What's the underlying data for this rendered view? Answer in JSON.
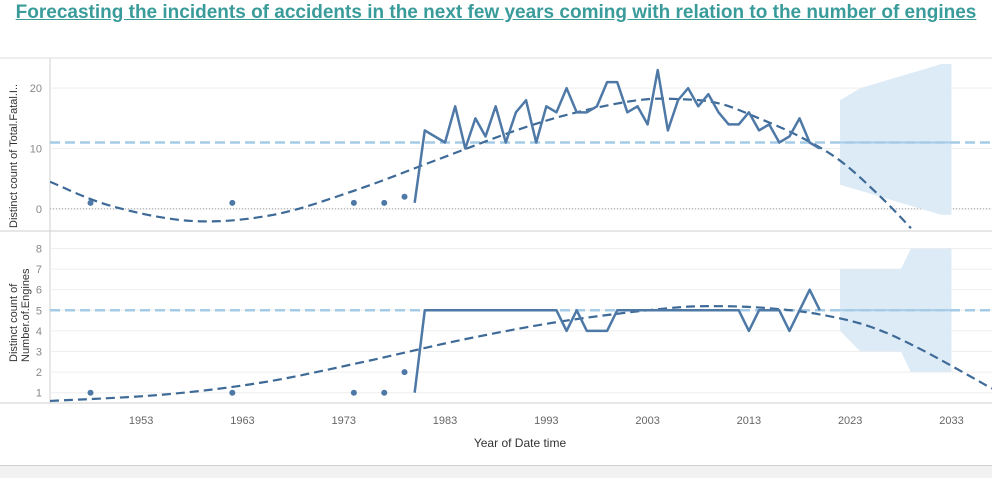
{
  "title": "Forecasting the incidents of accidents in the next few years coming with relation to the number of engines",
  "x_axis_label": "Year of Date time",
  "colors": {
    "series": "#4e79a7",
    "reference_line": "#a6cbe6",
    "forecast_band": "#ddebf7",
    "title": "#3a9b9b"
  },
  "chart_data": [
    {
      "type": "line",
      "panel": "top",
      "ylabel": "Distinct count of Total.Fatal.I..",
      "yticks": [
        0,
        10,
        20
      ],
      "ylim": [
        -3.5,
        25
      ],
      "xlim": [
        1944,
        2037
      ],
      "xticks": [
        1953,
        1963,
        1973,
        1983,
        1993,
        2003,
        2013,
        2023,
        2033
      ],
      "reference_line": 11,
      "points": [
        [
          1948,
          1
        ],
        [
          1962,
          1
        ],
        [
          1974,
          1
        ],
        [
          1977,
          1
        ],
        [
          1979,
          2
        ]
      ],
      "series": [
        {
          "name": "Distinct count of Total.Fatal.I..",
          "x": [
            1980,
            1981,
            1983,
            1984,
            1985,
            1986,
            1987,
            1988,
            1989,
            1990,
            1991,
            1992,
            1993,
            1994,
            1995,
            1996,
            1997,
            1998,
            1999,
            2000,
            2001,
            2002,
            2003,
            2004,
            2005,
            2006,
            2007,
            2008,
            2009,
            2010,
            2011,
            2012,
            2013,
            2014,
            2015,
            2016,
            2017,
            2018,
            2019,
            2020
          ],
          "y": [
            1,
            13,
            11,
            17,
            10,
            15,
            12,
            17,
            11,
            16,
            18,
            11,
            17,
            16,
            20,
            16,
            16,
            17,
            21,
            21,
            16,
            17,
            14,
            23,
            13,
            18,
            20,
            17,
            19,
            16,
            14,
            14,
            16,
            13,
            14,
            11,
            12,
            15,
            11,
            10
          ]
        }
      ],
      "trend": {
        "x": [
          1944,
          1950,
          1958,
          1966,
          1974,
          1982,
          1990,
          1996,
          2002,
          2006,
          2010,
          2014,
          2018,
          2022,
          2026,
          2029
        ],
        "y": [
          4.5,
          0.5,
          -2,
          -1,
          3,
          8,
          13,
          16,
          18,
          18.2,
          17.5,
          15,
          12,
          8,
          2,
          -3.2
        ]
      },
      "forecast": {
        "x": [
          2022,
          2024,
          2026,
          2028,
          2030,
          2032,
          2033
        ],
        "y": [
          11,
          11,
          11,
          11,
          11,
          11,
          11
        ],
        "upper": [
          18,
          20,
          21,
          22,
          23,
          24,
          24
        ],
        "lower": [
          4,
          3,
          2,
          1,
          0,
          -1,
          -1
        ]
      }
    },
    {
      "type": "line",
      "panel": "bottom",
      "ylabel": "Distinct count of Number.of.Engines",
      "yticks": [
        1,
        2,
        3,
        4,
        5,
        6,
        7,
        8
      ],
      "ylim": [
        0.5,
        8.8
      ],
      "xlim": [
        1944,
        2037
      ],
      "reference_line": 5,
      "points": [
        [
          1948,
          1
        ],
        [
          1962,
          1
        ],
        [
          1974,
          1
        ],
        [
          1977,
          1
        ],
        [
          1979,
          2
        ]
      ],
      "series": [
        {
          "name": "Distinct count of Number.of.Engines",
          "x": [
            1980,
            1981,
            1983,
            1990,
            1994,
            1995,
            1996,
            1997,
            1999,
            2000,
            2002,
            2010,
            2012,
            2013,
            2014,
            2016,
            2017,
            2018,
            2019,
            2020
          ],
          "y": [
            1,
            5,
            5,
            5,
            5,
            4,
            5,
            4,
            4,
            5,
            5,
            5,
            5,
            4,
            5,
            5,
            4,
            5,
            6,
            5
          ]
        }
      ],
      "trend": {
        "x": [
          1944,
          1955,
          1965,
          1975,
          1985,
          1995,
          2005,
          2010,
          2015,
          2020,
          2025,
          2030,
          2037
        ],
        "y": [
          0.6,
          0.9,
          1.5,
          2.5,
          3.6,
          4.5,
          5.1,
          5.2,
          5.1,
          4.8,
          4.2,
          3.1,
          1.2
        ]
      },
      "forecast": {
        "x": [
          2022,
          2024,
          2026,
          2028,
          2029,
          2031,
          2033
        ],
        "y": [
          5,
          5,
          5,
          5,
          5,
          5,
          5
        ],
        "upper": [
          7,
          7,
          7,
          7,
          8,
          8,
          8
        ],
        "lower": [
          4,
          3,
          3,
          3,
          2,
          2,
          2
        ]
      }
    }
  ]
}
